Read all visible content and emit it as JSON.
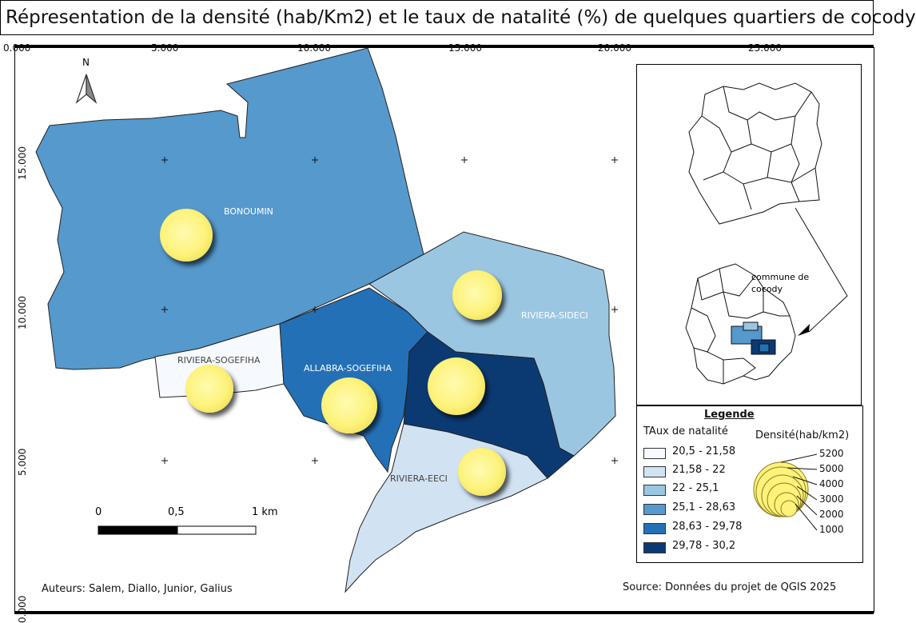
{
  "title": "Répresentation de la densité (hab/Km2) et le taux de natalité (%) de quelques quartiers de cocody",
  "axis": {
    "x_ticks": [
      "0.000",
      "5.000",
      "10.000",
      "15.000",
      "20.000",
      "25.000"
    ],
    "y_ticks": [
      "15.000",
      "10.000",
      "5.000",
      "0.000"
    ]
  },
  "north_label": "N",
  "districts": [
    {
      "name": "BONOUMIN",
      "birth_rate_class": "25,1 - 28,63",
      "color": "#5599cd"
    },
    {
      "name": "RIVIERA-SOGEFIHA",
      "birth_rate_class": "20,5 - 21,58",
      "color": "#f6f9fd"
    },
    {
      "name": "ALLABRA-SOGEFIHA",
      "birth_rate_class": "28,63 - 29,78",
      "color": "#2470b6"
    },
    {
      "name": "RIVIERA-SIDECI",
      "birth_rate_class": "22 - 25,1",
      "color": "#9bc6e1"
    },
    {
      "name": "RIVIERA-EECI",
      "birth_rate_class": "21,58 - 22",
      "color": "#d1e2f2"
    },
    {
      "name": "",
      "birth_rate_class": "29,78 - 30,2",
      "color": "#0b3a73"
    }
  ],
  "circle_color": "#fdf27a",
  "inset": {
    "label_line1": "commune de",
    "label_line2": "cocody"
  },
  "legend": {
    "title": "Legende",
    "birth_rate_title": "TAux de natalité",
    "density_title": "Densité(hab/km2)",
    "classes": [
      {
        "label": "20,5 - 21,58",
        "color": "#f6f9fd"
      },
      {
        "label": "21,58 - 22",
        "color": "#d1e2f2"
      },
      {
        "label": "22 - 25,1",
        "color": "#9bc6e1"
      },
      {
        "label": "25,1 - 28,63",
        "color": "#5599cd"
      },
      {
        "label": "28,63 - 29,78",
        "color": "#2470b6"
      },
      {
        "label": "29,78 - 30,2",
        "color": "#0b3a73"
      }
    ],
    "density_sizes": [
      "5200",
      "5000",
      "4000",
      "3000",
      "2000",
      "1000"
    ]
  },
  "scale_bar": {
    "labels": [
      "0",
      "0,5",
      "1 km"
    ]
  },
  "authors": "Auteurs: Salem, Diallo, Junior, Galius",
  "source": "Source: Données du projet de QGIS 2025"
}
